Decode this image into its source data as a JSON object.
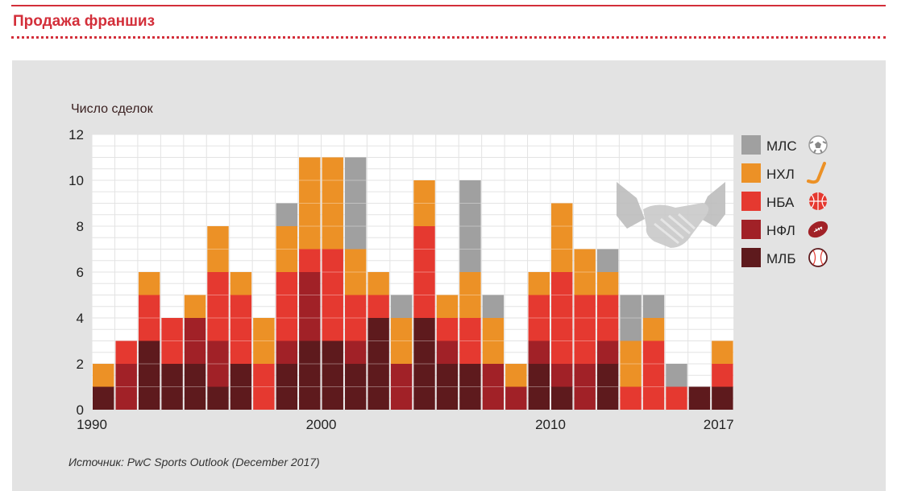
{
  "page": {
    "title": "Продажа франшиз",
    "source": "Источник: PwC Sports Outlook (December 2017)"
  },
  "colors": {
    "МЛС": "#a0a0a0",
    "НХЛ": "#ec9126",
    "НБА": "#e53930",
    "НФЛ": "#a12127",
    "МЛБ": "#5e1a1d"
  },
  "chart_data": {
    "type": "bar",
    "stacked": true,
    "ylabel": "Число сделок",
    "ylim": [
      0,
      12
    ],
    "yticks": [
      0,
      2,
      4,
      6,
      8,
      10,
      12
    ],
    "grid": true,
    "legend_position": "right",
    "x": [
      1990,
      1991,
      1992,
      1993,
      1994,
      1995,
      1996,
      1997,
      1998,
      1999,
      2000,
      2001,
      2002,
      2003,
      2004,
      2005,
      2006,
      2007,
      2008,
      2009,
      2010,
      2011,
      2012,
      2013,
      2014,
      2015,
      2016,
      2017
    ],
    "x_tick_labels": [
      "1990",
      "2000",
      "2010",
      "2017"
    ],
    "series": [
      {
        "name": "МЛБ",
        "icon": "baseball-icon",
        "values": [
          1,
          0,
          3,
          2,
          2,
          1,
          2,
          0,
          2,
          3,
          3,
          2,
          4,
          0,
          4,
          2,
          2,
          0,
          0,
          2,
          1,
          0,
          2,
          0,
          0,
          0,
          1,
          1
        ]
      },
      {
        "name": "НФЛ",
        "icon": "football-icon",
        "values": [
          0,
          2,
          0,
          0,
          2,
          2,
          0,
          0,
          1,
          3,
          0,
          1,
          0,
          2,
          0,
          1,
          0,
          2,
          1,
          1,
          1,
          2,
          1,
          0,
          0,
          0,
          0,
          0
        ]
      },
      {
        "name": "НБА",
        "icon": "basketball-icon",
        "values": [
          0,
          1,
          2,
          2,
          0,
          3,
          3,
          2,
          3,
          1,
          4,
          2,
          1,
          0,
          4,
          1,
          2,
          0,
          0,
          2,
          4,
          3,
          2,
          1,
          3,
          1,
          0,
          1
        ]
      },
      {
        "name": "НХЛ",
        "icon": "hockey-stick-icon",
        "values": [
          1,
          0,
          1,
          0,
          1,
          2,
          1,
          2,
          2,
          4,
          4,
          2,
          1,
          2,
          2,
          1,
          2,
          2,
          1,
          1,
          3,
          2,
          1,
          2,
          1,
          0,
          0,
          1
        ]
      },
      {
        "name": "МЛС",
        "icon": "soccer-ball-icon",
        "values": [
          0,
          0,
          0,
          0,
          0,
          0,
          0,
          0,
          1,
          0,
          0,
          4,
          0,
          1,
          0,
          0,
          4,
          1,
          0,
          0,
          0,
          0,
          1,
          2,
          1,
          1,
          0,
          0
        ]
      }
    ],
    "legend_order": [
      "МЛС",
      "НХЛ",
      "НБА",
      "НФЛ",
      "МЛБ"
    ]
  }
}
